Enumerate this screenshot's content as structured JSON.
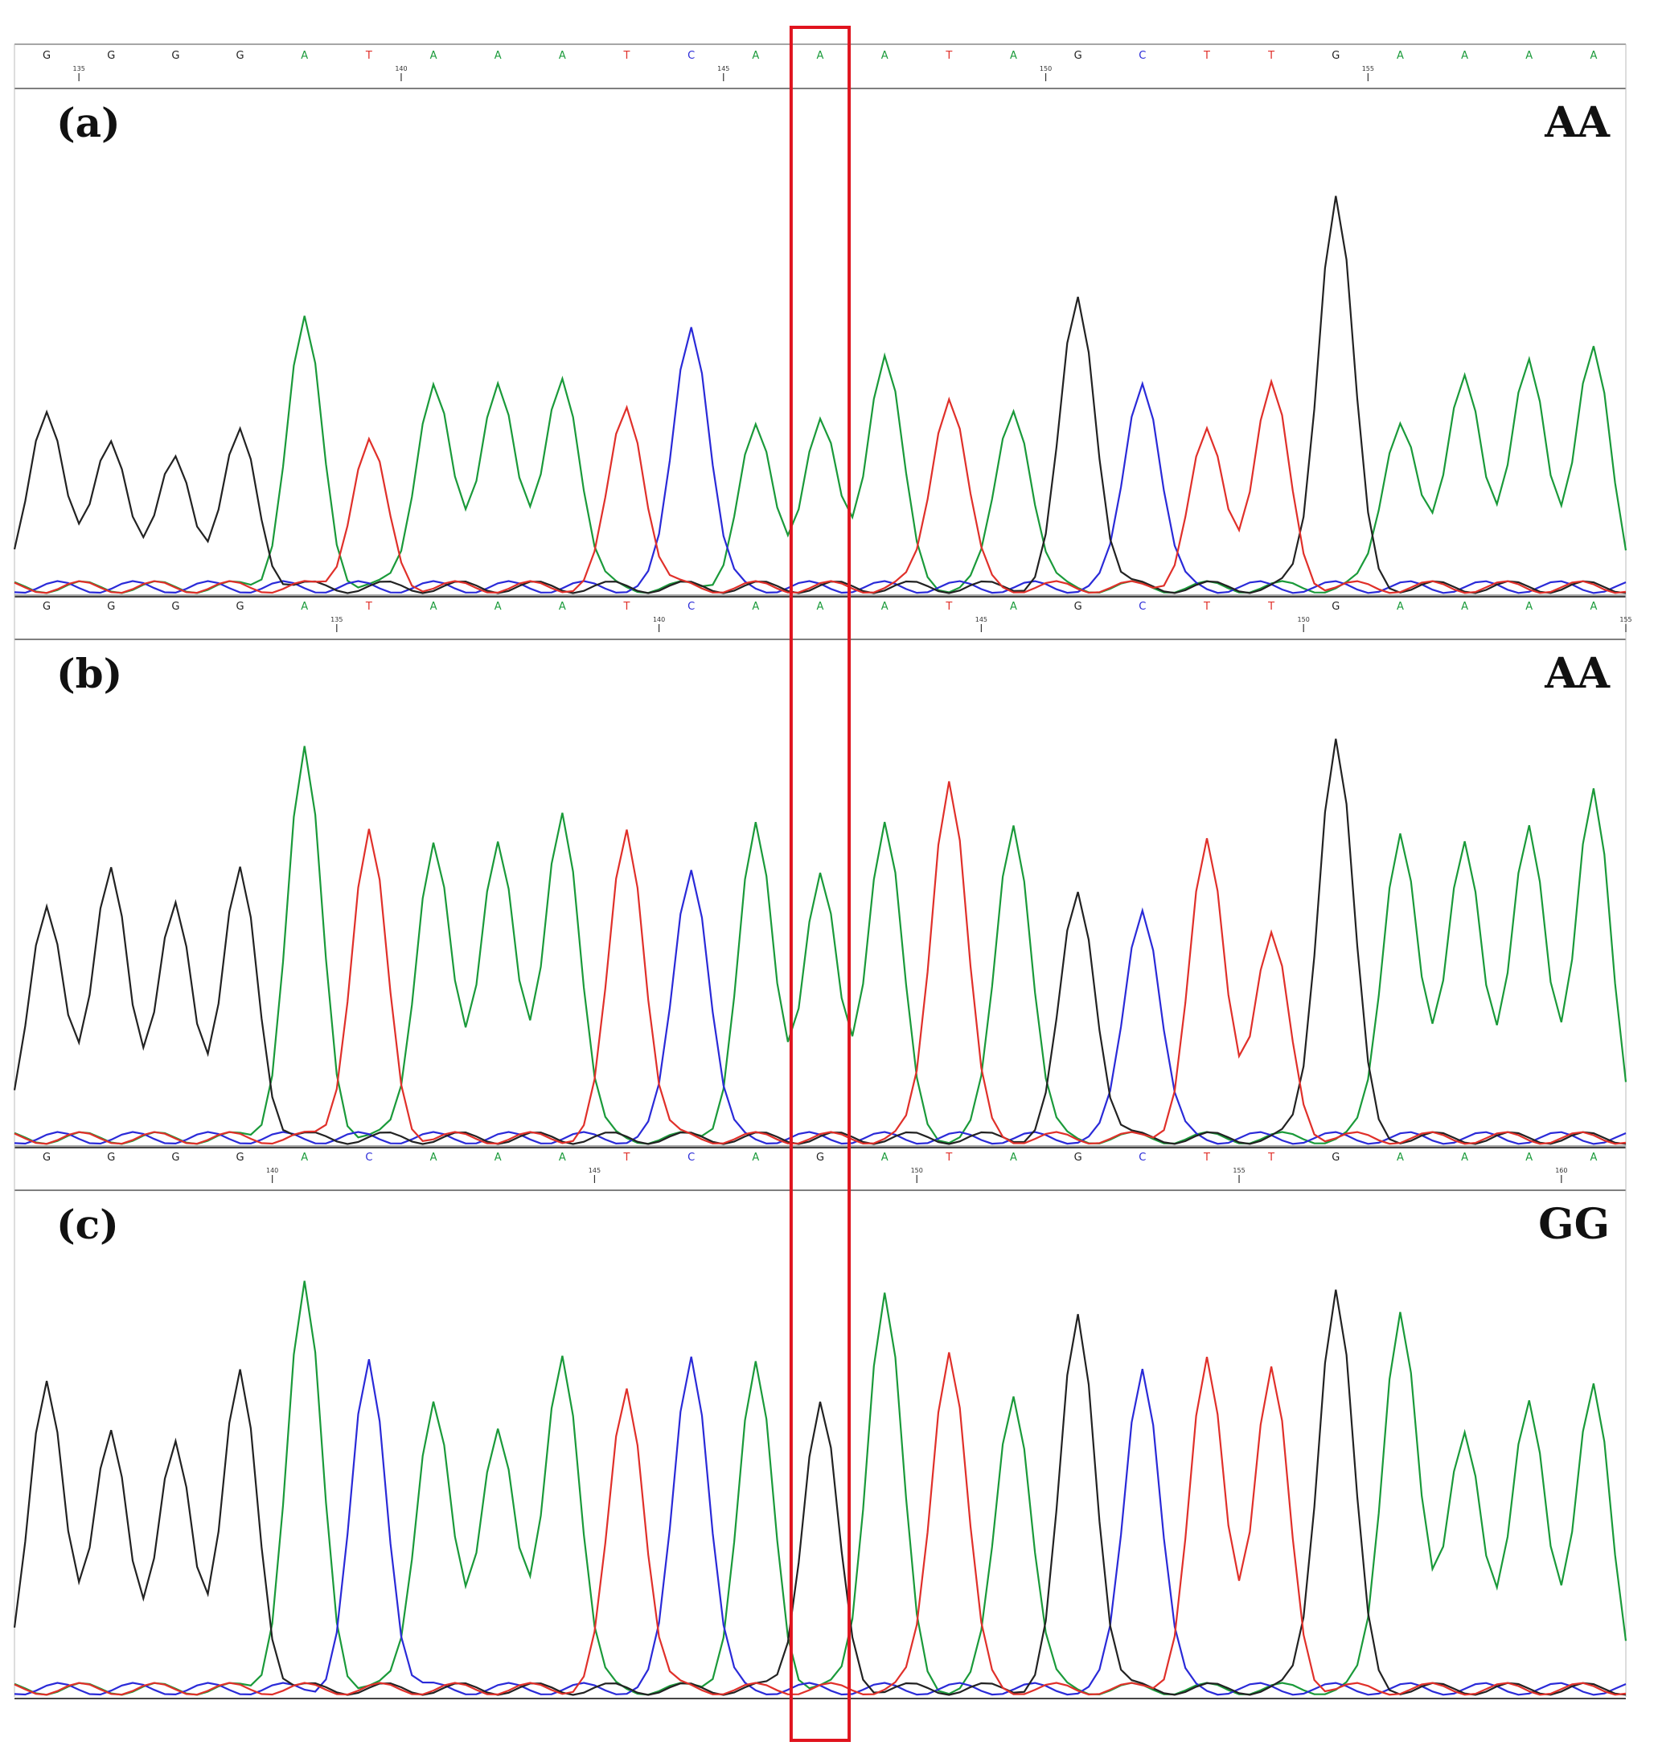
{
  "figure": {
    "base_colors": {
      "A": "#1a9a3a",
      "C": "#2a2ad8",
      "G": "#222222",
      "T": "#e0302a"
    },
    "highlight_color": "#e0141e",
    "highlight_position_index": 12
  },
  "chart_data": [
    {
      "type": "line",
      "title": "",
      "panel_label": "(a)",
      "genotype": "AA",
      "bases": [
        "G",
        "G",
        "G",
        "G",
        "A",
        "T",
        "A",
        "A",
        "A",
        "T",
        "C",
        "A",
        "A",
        "A",
        "T",
        "A",
        "G",
        "C",
        "T",
        "T",
        "G",
        "A",
        "A",
        "A",
        "A"
      ],
      "positions": [
        {
          "label": "135",
          "after_index": 0
        },
        {
          "label": "140",
          "after_index": 5
        },
        {
          "label": "145",
          "after_index": 10
        },
        {
          "label": "150",
          "after_index": 15
        },
        {
          "label": "155",
          "after_index": 20
        }
      ],
      "peaks": [
        {
          "base": "G",
          "heights": [
            0.45,
            0.37,
            0.32,
            0.38
          ]
        },
        {
          "base": "A",
          "heights": [
            0.66,
            0.51,
            0.52,
            0.53,
            0.39,
            0.41,
            0.58,
            0.45,
            0.42,
            0.54,
            0.57,
            0.59
          ]
        },
        {
          "base": "T",
          "heights": [
            0.36,
            0.45,
            0.48,
            0.38
          ]
        },
        {
          "base": "C",
          "heights": [
            0.66,
            0.52
          ]
        },
        {
          "base": "G",
          "heights": [
            0.72,
            0.98
          ]
        }
      ]
    },
    {
      "type": "line",
      "title": "",
      "panel_label": "(b)",
      "genotype": "AA",
      "bases": [
        "G",
        "G",
        "G",
        "G",
        "A",
        "T",
        "A",
        "A",
        "A",
        "T",
        "C",
        "A",
        "A",
        "A",
        "T",
        "A",
        "G",
        "C",
        "T",
        "T",
        "G",
        "A",
        "A",
        "A",
        "A"
      ],
      "positions": [
        {
          "label": "135",
          "after_index": 4
        },
        {
          "label": "140",
          "after_index": 9
        },
        {
          "label": "145",
          "after_index": 14
        },
        {
          "label": "150",
          "after_index": 19
        },
        {
          "label": "155",
          "after_index": 24
        }
      ],
      "peaks": [
        {
          "base": "G",
          "heights": [
            0.59,
            0.68,
            0.58,
            0.66
          ]
        },
        {
          "base": "A",
          "heights": [
            0.96,
            0.74,
            0.75,
            0.82,
            0.77,
            0.65,
            0.79,
            0.79,
            0.77,
            0.75,
            0.78,
            0.86
          ]
        },
        {
          "base": "T",
          "heights": [
            0.76,
            0.77,
            0.9,
            0.73
          ]
        },
        {
          "base": "C",
          "heights": [
            0.68,
            0.58
          ]
        },
        {
          "base": "G",
          "heights": [
            0.61,
            1.0
          ]
        }
      ]
    },
    {
      "type": "line",
      "title": "",
      "panel_label": "(c)",
      "genotype": "GG",
      "bases": [
        "G",
        "G",
        "G",
        "G",
        "A",
        "C",
        "A",
        "A",
        "A",
        "T",
        "C",
        "A",
        "G",
        "A",
        "T",
        "A",
        "G",
        "C",
        "T",
        "T",
        "G",
        "A",
        "A",
        "A",
        "A"
      ],
      "positions": [
        {
          "label": "140",
          "after_index": 3
        },
        {
          "label": "145",
          "after_index": 8
        },
        {
          "label": "150",
          "after_index": 13
        },
        {
          "label": "155",
          "after_index": 18
        },
        {
          "label": "160",
          "after_index": 23
        }
      ],
      "peaks": [
        {
          "base": "G",
          "heights": [
            0.78,
            0.65,
            0.61,
            0.78
          ]
        },
        {
          "base": "A",
          "heights": [
            1.0,
            0.72,
            0.66,
            0.84,
            0.8,
            0.99,
            0.74,
            0.95,
            0.65,
            0.72,
            0.75,
            0.75
          ]
        },
        {
          "base": "C",
          "heights": [
            0.81,
            0.84,
            0.81
          ]
        },
        {
          "base": "T",
          "heights": [
            0.75,
            0.85,
            0.81,
            0.79
          ]
        },
        {
          "base": "G",
          "heights": [
            0.71,
            0.93,
            1.0
          ]
        }
      ]
    }
  ]
}
